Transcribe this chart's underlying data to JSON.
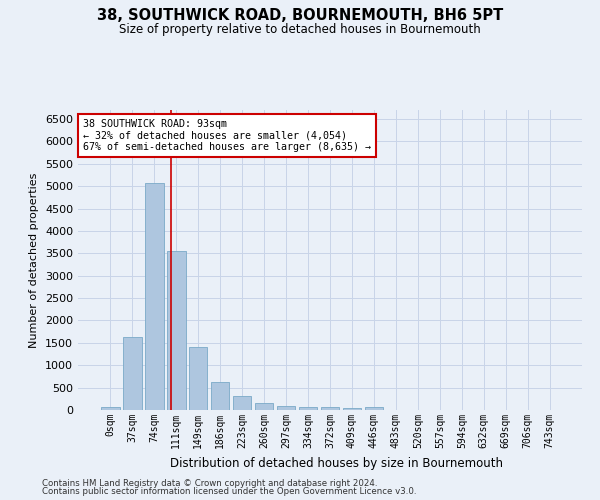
{
  "title": "38, SOUTHWICK ROAD, BOURNEMOUTH, BH6 5PT",
  "subtitle": "Size of property relative to detached houses in Bournemouth",
  "xlabel": "Distribution of detached houses by size in Bournemouth",
  "ylabel": "Number of detached properties",
  "footer1": "Contains HM Land Registry data © Crown copyright and database right 2024.",
  "footer2": "Contains public sector information licensed under the Open Government Licence v3.0.",
  "bar_color": "#aec6df",
  "bar_edge_color": "#7aaac8",
  "grid_color": "#c8d4e8",
  "annotation_box_color": "#cc0000",
  "vline_color": "#cc0000",
  "background_color": "#eaf0f8",
  "categories": [
    "0sqm",
    "37sqm",
    "74sqm",
    "111sqm",
    "149sqm",
    "186sqm",
    "223sqm",
    "260sqm",
    "297sqm",
    "334sqm",
    "372sqm",
    "409sqm",
    "446sqm",
    "483sqm",
    "520sqm",
    "557sqm",
    "594sqm",
    "632sqm",
    "669sqm",
    "706sqm",
    "743sqm"
  ],
  "values": [
    75,
    1620,
    5080,
    3560,
    1400,
    620,
    310,
    155,
    100,
    60,
    70,
    55,
    70,
    0,
    0,
    0,
    0,
    0,
    0,
    0,
    0
  ],
  "property_label": "38 SOUTHWICK ROAD: 93sqm",
  "annotation_line1": "← 32% of detached houses are smaller (4,054)",
  "annotation_line2": "67% of semi-detached houses are larger (8,635) →",
  "vline_x": 2.75,
  "ylim": [
    0,
    6700
  ],
  "yticks": [
    0,
    500,
    1000,
    1500,
    2000,
    2500,
    3000,
    3500,
    4000,
    4500,
    5000,
    5500,
    6000,
    6500
  ]
}
